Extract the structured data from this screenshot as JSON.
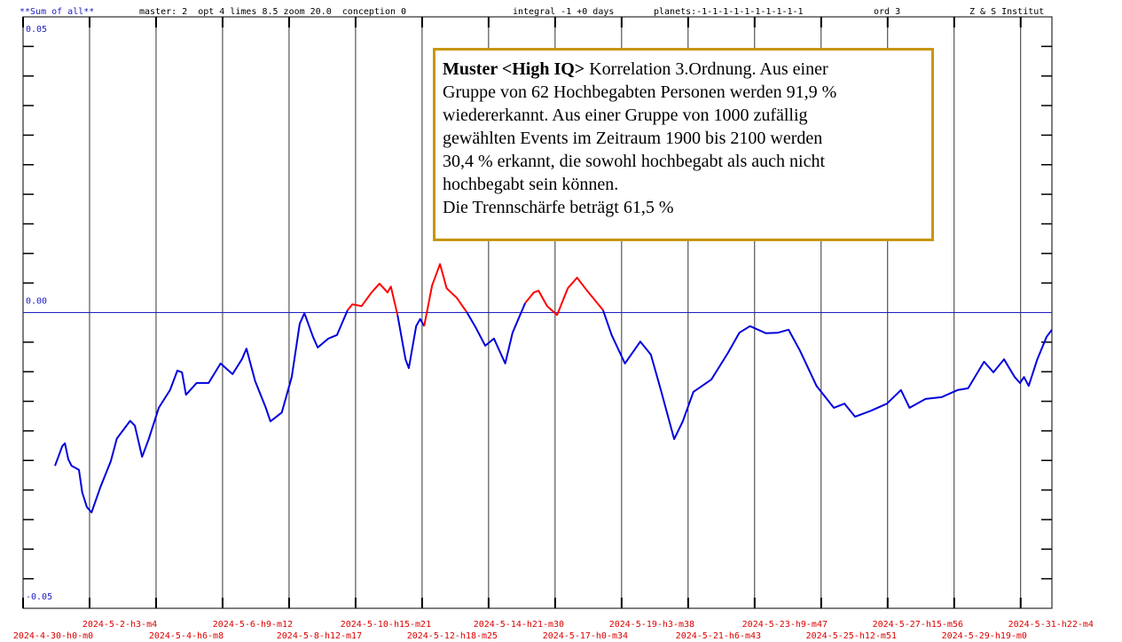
{
  "chart_data": {
    "type": "line",
    "header": [
      "**Sum of all**",
      "master: 2  opt 4 limes 8.5 zoom 20.0  conception 0",
      "integral -1 +0 days",
      "planets:-1-1-1-1-1-1-1-1-1-1",
      "ord 3",
      "Z & S Institut"
    ],
    "annotation": {
      "bold": "Muster <High IQ>",
      "lines": [
        "Korrelation 3.Ordnung. Aus einer",
        "Gruppe von 62 Hochbegabten Personen werden 91,9 %",
        "wiedererkannt. Aus einer Gruppe von 1000 zufällig",
        "gewählten Events im Zeitraum 1900 bis 2100 werden",
        "30,4 % erkannt, die sowohl hochbegabt als auch nicht",
        "hochbegabt sein können.",
        "Die Trennschärfe beträgt 61,5 %"
      ]
    },
    "xlim": [
      0,
      15.47
    ],
    "xticks": [
      {
        "value": 0,
        "label": "2024-4-30-h0-m0"
      },
      {
        "value": 1,
        "label": "2024-5-2-h3-m4"
      },
      {
        "value": 2,
        "label": "2024-5-4-h6-m8"
      },
      {
        "value": 3,
        "label": "2024-5-6-h9-m12"
      },
      {
        "value": 4,
        "label": "2024-5-8-h12-m17"
      },
      {
        "value": 5,
        "label": "2024-5-10-h15-m21"
      },
      {
        "value": 6,
        "label": "2024-5-12-h18-m25"
      },
      {
        "value": 7,
        "label": "2024-5-14-h21-m30"
      },
      {
        "value": 8,
        "label": "2024-5-17-h0-m34"
      },
      {
        "value": 9,
        "label": "2024-5-19-h3-m38"
      },
      {
        "value": 10,
        "label": "2024-5-21-h6-m43"
      },
      {
        "value": 11,
        "label": "2024-5-23-h9-m47"
      },
      {
        "value": 12,
        "label": "2024-5-25-h12-m51"
      },
      {
        "value": 13,
        "label": "2024-5-27-h15-m56"
      },
      {
        "value": 14,
        "label": "2024-5-29-h19-m0"
      },
      {
        "value": 15,
        "label": "2024-5-31-h22-m4"
      }
    ],
    "ylim": [
      -0.05,
      0.05
    ],
    "yticks": [
      0.05,
      {
        "value": 0,
        "label": "0.00"
      },
      -0.05
    ],
    "yminorticks": [
      0.045,
      0.04,
      0.035,
      0.03,
      0.025,
      0.02,
      0.015,
      0.01,
      0.005,
      -0.005,
      -0.01,
      -0.015,
      -0.02,
      -0.025,
      -0.03,
      -0.035,
      -0.04,
      -0.045
    ],
    "grid": true,
    "zero_line_color": "#2020c0",
    "x": [
      0.48,
      0.59,
      0.63,
      0.68,
      0.73,
      0.84,
      0.89,
      0.96,
      1.03,
      1.16,
      1.32,
      1.41,
      1.61,
      1.68,
      1.79,
      1.89,
      2.04,
      2.21,
      2.32,
      2.39,
      2.45,
      2.61,
      2.79,
      2.97,
      3.15,
      3.29,
      3.36,
      3.49,
      3.65,
      3.72,
      3.89,
      4.04,
      4.16,
      4.23,
      4.36,
      4.43,
      4.59,
      4.72,
      4.88,
      4.95,
      5.09,
      5.24,
      5.36,
      5.48,
      5.53,
      5.63,
      5.75,
      5.8,
      5.91,
      5.97,
      6.03,
      6.15,
      6.27,
      6.37,
      6.52,
      6.67,
      6.81,
      6.95,
      7.08,
      7.25,
      7.36,
      7.55,
      7.68,
      7.75,
      7.88,
      8.03,
      8.19,
      8.33,
      8.48,
      8.72,
      8.85,
      9.05,
      9.28,
      9.44,
      9.59,
      9.79,
      9.92,
      10.08,
      10.35,
      10.6,
      10.77,
      10.93,
      11.17,
      11.35,
      11.51,
      11.68,
      11.93,
      12.19,
      12.35,
      12.51,
      12.75,
      12.99,
      13.2,
      13.33,
      13.57,
      13.81,
      14.05,
      14.21,
      14.45,
      14.59,
      14.75,
      14.91,
      14.99,
      15.05,
      15.12,
      15.25,
      15.39,
      15.47
    ],
    "series": [
      {
        "color": "#0000dd",
        "positive_color": "#ff0000",
        "values": [
          -0.0259,
          -0.0226,
          -0.0221,
          -0.0248,
          -0.0259,
          -0.0266,
          -0.0304,
          -0.0329,
          -0.0338,
          -0.0296,
          -0.0251,
          -0.0213,
          -0.0183,
          -0.0191,
          -0.0244,
          -0.0214,
          -0.0161,
          -0.0131,
          -0.0098,
          -0.0101,
          -0.0139,
          -0.0119,
          -0.0119,
          -0.0086,
          -0.0104,
          -0.0079,
          -0.0061,
          -0.0116,
          -0.0161,
          -0.0184,
          -0.0169,
          -0.0109,
          -0.0019,
          -0.0001,
          -0.0041,
          -0.0059,
          -0.0044,
          -0.0038,
          0.0004,
          0.0014,
          0.0011,
          0.0034,
          0.0049,
          0.0034,
          0.0044,
          -0.0004,
          -0.0079,
          -0.0094,
          -0.0023,
          -0.0011,
          -0.0023,
          0.0046,
          0.0082,
          0.0041,
          0.0025,
          0.0001,
          -0.0026,
          -0.0056,
          -0.0044,
          -0.0086,
          -0.0034,
          0.0016,
          0.0034,
          0.0037,
          0.0011,
          -0.0004,
          0.0041,
          0.0059,
          0.0037,
          0.0004,
          -0.0038,
          -0.0086,
          -0.0049,
          -0.0071,
          -0.0131,
          -0.0214,
          -0.0184,
          -0.0134,
          -0.0113,
          -0.0068,
          -0.0034,
          -0.0023,
          -0.0035,
          -0.0034,
          -0.0029,
          -0.0064,
          -0.0124,
          -0.0161,
          -0.0154,
          -0.0176,
          -0.0166,
          -0.0154,
          -0.0131,
          -0.0161,
          -0.0146,
          -0.0143,
          -0.0131,
          -0.0128,
          -0.0083,
          -0.0101,
          -0.0079,
          -0.0109,
          -0.0119,
          -0.0109,
          -0.0124,
          -0.0079,
          -0.0041,
          -0.0029
        ]
      }
    ]
  }
}
